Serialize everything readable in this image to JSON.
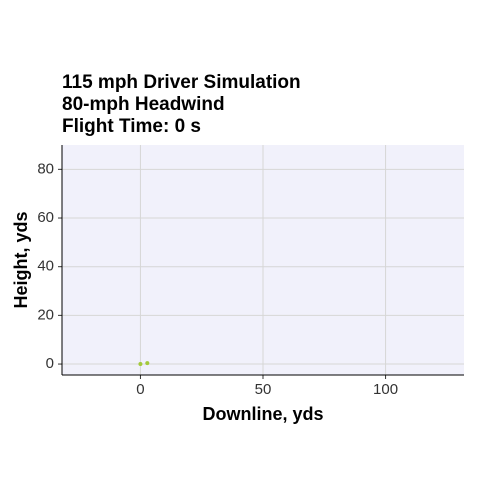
{
  "chart_data": {
    "type": "scatter",
    "title": [
      "115 mph Driver Simulation",
      "80-mph Headwind",
      "Flight Time: 0 s"
    ],
    "x_label": "Downline, yds",
    "y_label": "Height, yds",
    "series": [
      {
        "x": [
          0,
          2.8
        ],
        "values": [
          0,
          0.4
        ],
        "color": "#a3c93a"
      }
    ],
    "xlim": [
      -32,
      132
    ],
    "ylim": [
      -4.5,
      90
    ],
    "xticks": [
      0,
      50,
      100
    ],
    "yticks": [
      0,
      20,
      40,
      60,
      80
    ],
    "grid": true
  }
}
